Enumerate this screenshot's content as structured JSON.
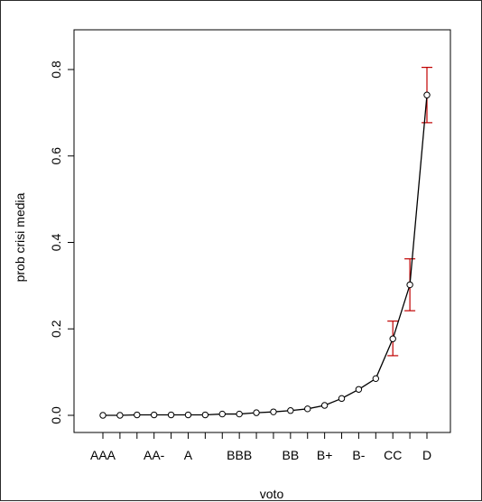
{
  "chart_data": {
    "type": "line",
    "xlabel": "voto",
    "ylabel": "prob crisi media",
    "ylim": [
      0,
      0.8
    ],
    "y_ticks": [
      "0.0",
      "0.2",
      "0.4",
      "0.6",
      "0.8"
    ],
    "x_tick_labels": [
      "AAA",
      "",
      "",
      "AA-",
      "",
      "A",
      "",
      "",
      "BBB",
      "",
      "",
      "BB",
      "",
      "B+",
      "",
      "B-",
      "",
      "CC",
      "",
      "D"
    ],
    "grid": false,
    "legend": "none",
    "series": [
      {
        "values": [
          0.0,
          0.0,
          0.001,
          0.001,
          0.001,
          0.001,
          0.001,
          0.003,
          0.003,
          0.006,
          0.008,
          0.011,
          0.015,
          0.023,
          0.039,
          0.06,
          0.085,
          0.177,
          0.302,
          0.741
        ],
        "color": "#000000",
        "marker": "open-circle"
      }
    ],
    "error_bars": [
      {
        "index": 17,
        "low": 0.138,
        "high": 0.218
      },
      {
        "index": 18,
        "low": 0.242,
        "high": 0.362
      },
      {
        "index": 19,
        "low": 0.677,
        "high": 0.805
      }
    ],
    "error_bar_color": "#c00000"
  }
}
